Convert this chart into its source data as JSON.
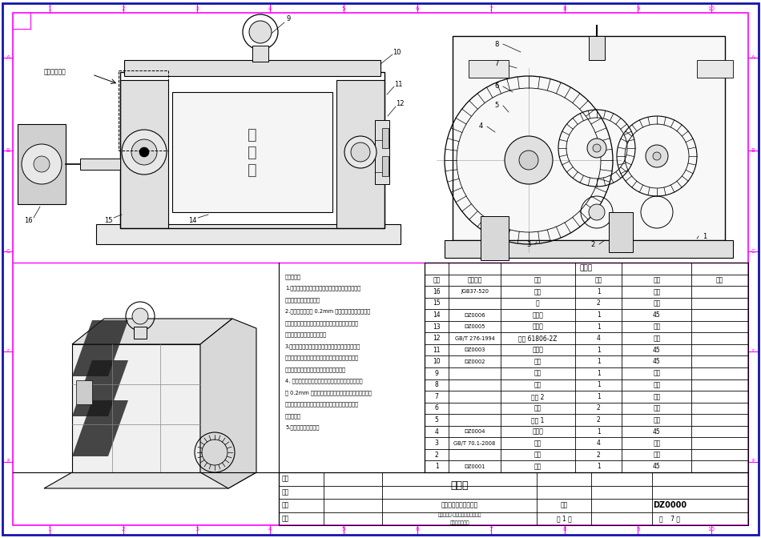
{
  "page_bg": "#ffffff",
  "outer_border_color": "#1414aa",
  "inner_border_color": "#ff00ff",
  "fig_width": 9.5,
  "fig_height": 6.72,
  "bom_rows": [
    {
      "seq": "16",
      "part_no": "JGB37-520",
      "name": "电机",
      "qty": "1",
      "mat": "常规",
      "note": ""
    },
    {
      "seq": "15",
      "part_no": "",
      "name": "键",
      "qty": "2",
      "mat": "常规",
      "note": ""
    },
    {
      "seq": "14",
      "part_no": "DZ0006",
      "name": "从动轮",
      "qty": "1",
      "mat": "45",
      "note": ""
    },
    {
      "seq": "13",
      "part_no": "DZ0005",
      "name": "主动轮",
      "qty": "1",
      "mat": "常规",
      "note": ""
    },
    {
      "seq": "12",
      "part_no": "GB/T 276-1994",
      "name": "轴承 61806-2Z",
      "qty": "4",
      "mat": "常规",
      "note": ""
    },
    {
      "seq": "11",
      "part_no": "DZ0003",
      "name": "右立板",
      "qty": "1",
      "mat": "45",
      "note": ""
    },
    {
      "seq": "10",
      "part_no": "DZ0002",
      "name": "上盖",
      "qty": "1",
      "mat": "45",
      "note": ""
    },
    {
      "seq": "9",
      "part_no": "",
      "name": "吸环",
      "qty": "1",
      "mat": "常规",
      "note": ""
    },
    {
      "seq": "8",
      "part_no": "",
      "name": "惰轮",
      "qty": "1",
      "mat": "常规",
      "note": ""
    },
    {
      "seq": "7",
      "part_no": "",
      "name": "卡簷 2",
      "qty": "1",
      "mat": "常规",
      "note": ""
    },
    {
      "seq": "6",
      "part_no": "",
      "name": "齿轮",
      "qty": "2",
      "mat": "常规",
      "note": ""
    },
    {
      "seq": "5",
      "part_no": "",
      "name": "卡簷 1",
      "qty": "2",
      "mat": "常规",
      "note": ""
    },
    {
      "seq": "4",
      "part_no": "DZ0004",
      "name": "左立板",
      "qty": "1",
      "mat": "45",
      "note": ""
    },
    {
      "seq": "3",
      "part_no": "GB/T 70.1-2008",
      "name": "负钉",
      "qty": "4",
      "mat": "常规",
      "note": ""
    },
    {
      "seq": "2",
      "part_no": "",
      "name": "销钉",
      "qty": "2",
      "mat": "常规",
      "note": ""
    },
    {
      "seq": "1",
      "part_no": "DZ0001",
      "name": "底板",
      "qty": "1",
      "mat": "45",
      "note": ""
    }
  ],
  "bom_header": [
    "序号",
    "零件代号",
    "名称",
    "数量",
    "材料",
    "备注"
  ],
  "tech_text_lines": [
    "技术要求：",
    "1.按自行设计的装配工艺将图纸零件及标准件装配完",
    "成，机构空载运动灵活。",
    "2.手动压印。试用 0.2mm 压锂纸从底板表面游入，",
    "液压成型并切割，要求从压印正方向观察，图案形状",
    "及位置与图纸展开图案一致。",
    "3.创新设计部分，在指定区域内按照工作任务和装配",
    "要求进行创新零件设计并加工，要求结构设计合理，",
    "能实现连接与固定，零件外观表面无毛刷。",
    "4. 自动压印，启动电机，机构运行平稳，无卡模，试",
    "用 0.2mm 铝等纸从底板表面游入，液压成型并切割，",
    "要求从压印正方向观察，图案形状和位置与图纸展开",
    "图案一致。",
    "5.装配过程注意安全。"
  ]
}
